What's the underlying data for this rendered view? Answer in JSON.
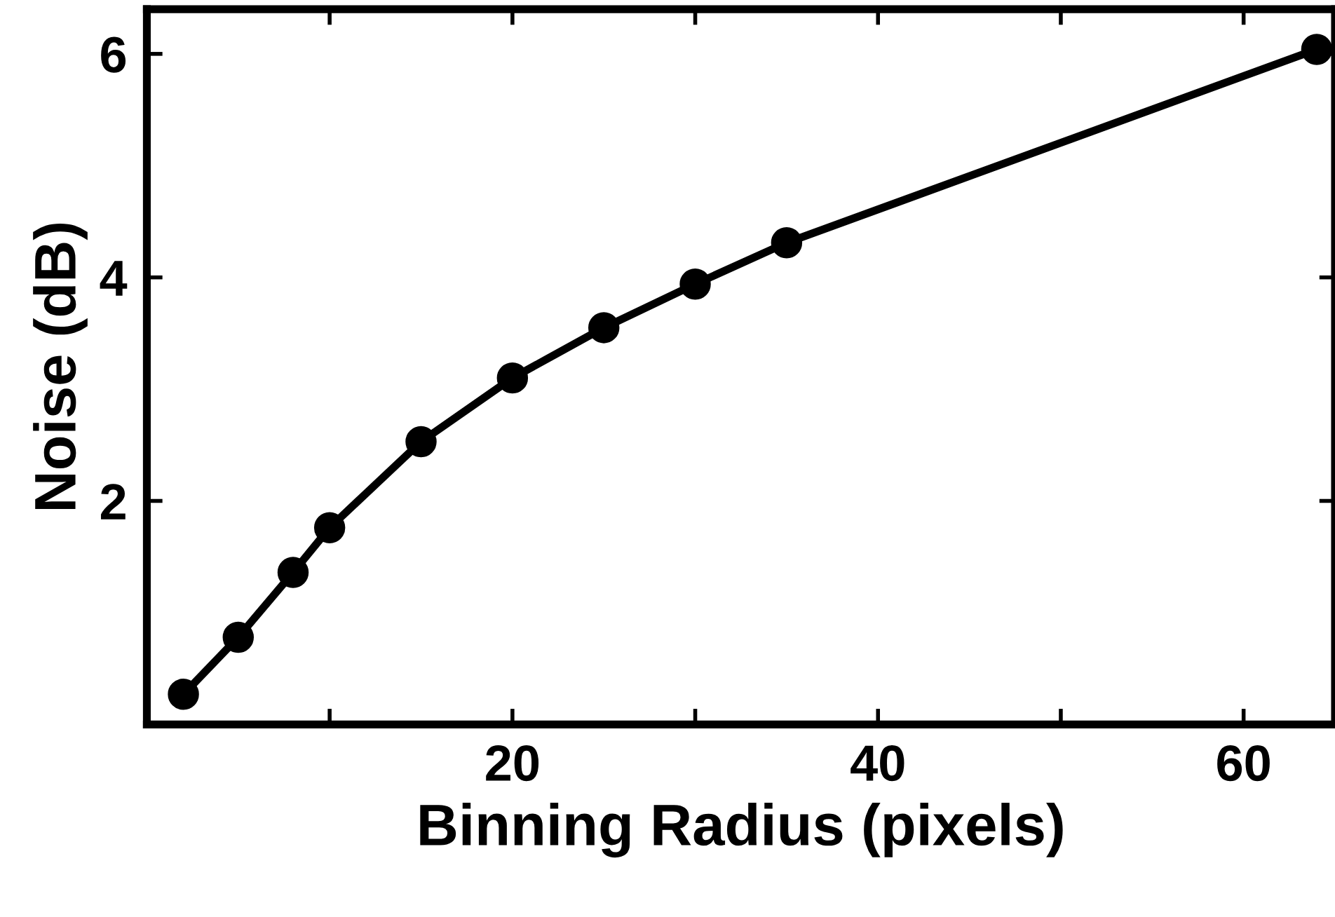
{
  "chart_data": {
    "type": "line",
    "xlabel": "Binning Radius (pixels)",
    "ylabel": "Noise (dB)",
    "x": [
      2,
      5,
      8,
      10,
      15,
      20,
      25,
      30,
      35,
      64
    ],
    "series": [
      {
        "color": "#000000",
        "values": [
          0.27,
          0.78,
          1.36,
          1.76,
          2.53,
          3.1,
          3.55,
          3.94,
          4.31,
          6.04
        ]
      }
    ],
    "xlim": [
      0,
      65
    ],
    "xticks": [
      {
        "value": 10,
        "label": null
      },
      20,
      {
        "value": 30,
        "label": null
      },
      40,
      {
        "value": 50,
        "label": null
      },
      60
    ],
    "ylim": [
      0,
      6.4
    ],
    "yticks": [
      2,
      4,
      6
    ],
    "marker": "circle",
    "line_style": "solid",
    "grid": false,
    "legend": false
  }
}
